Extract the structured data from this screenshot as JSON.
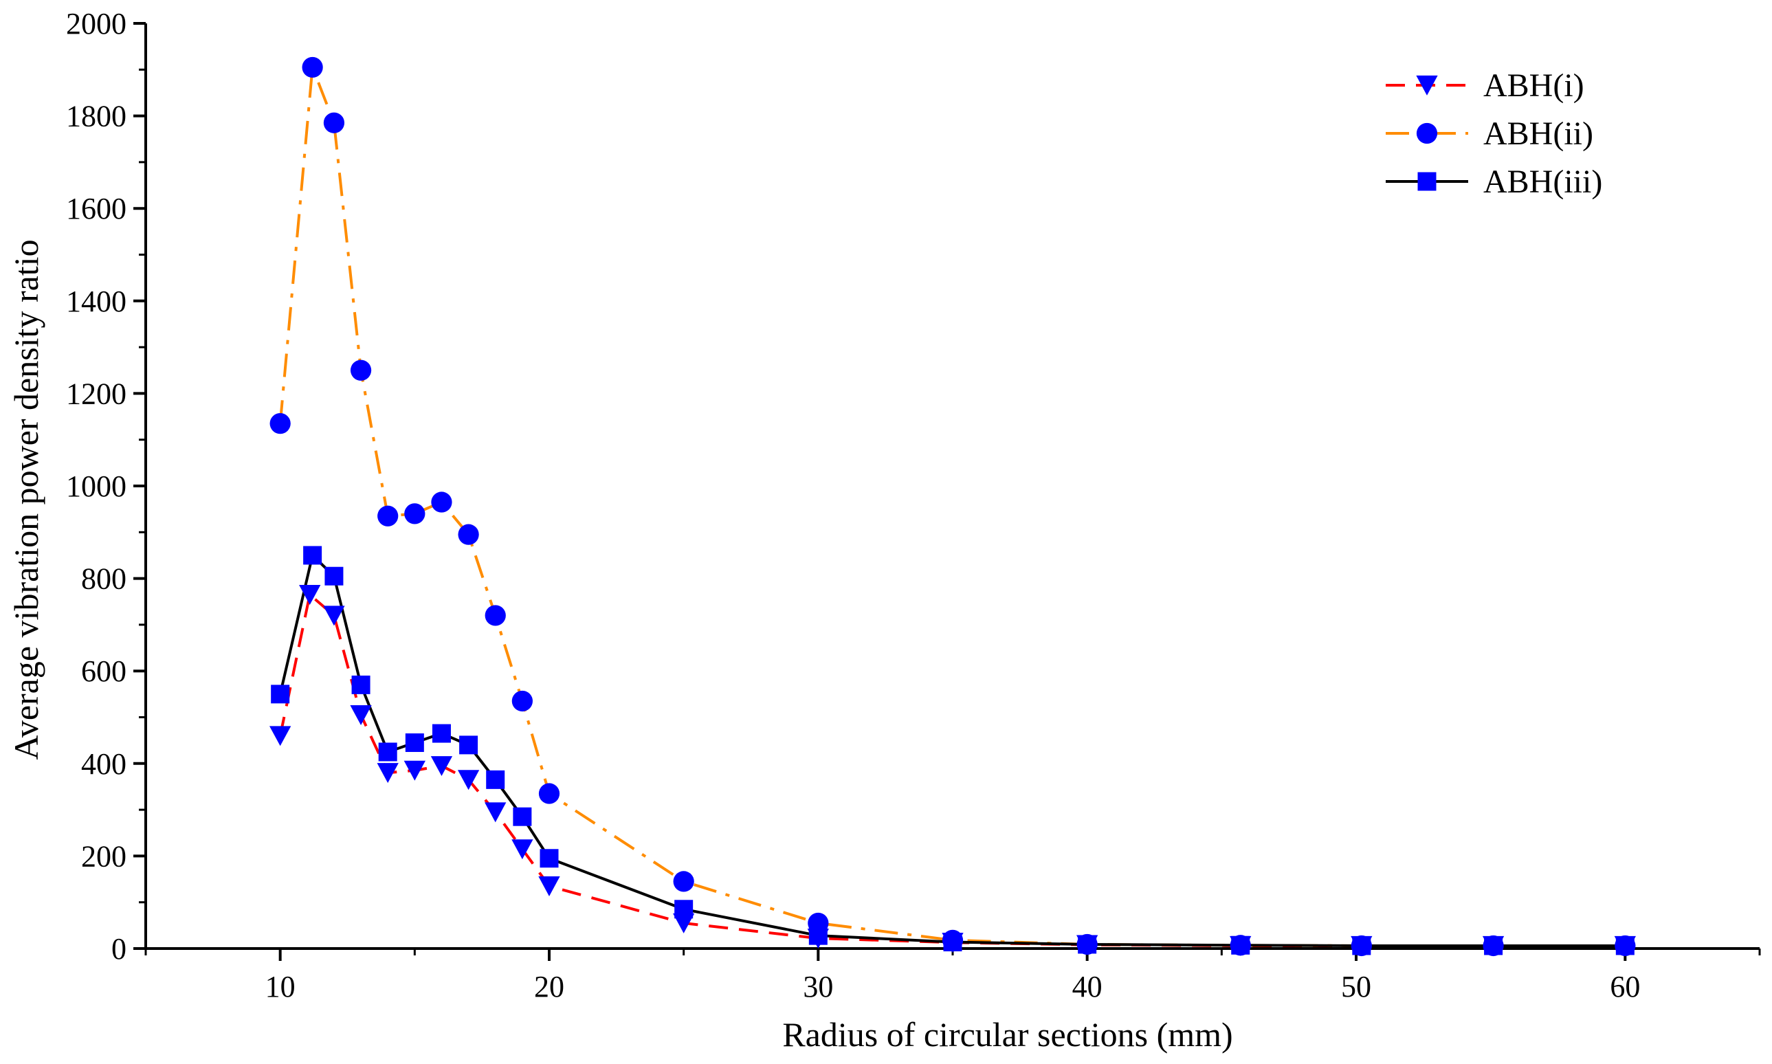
{
  "chart_data": {
    "type": "line",
    "title": "",
    "xlabel": "Radius of circular sections (mm)",
    "ylabel": "Average vibration power density ratio",
    "xlim": [
      5,
      65
    ],
    "ylim": [
      0,
      2000
    ],
    "xticks": [
      10,
      20,
      30,
      40,
      50,
      60
    ],
    "yticks": [
      0,
      200,
      400,
      600,
      800,
      1000,
      1200,
      1400,
      1600,
      1800,
      2000
    ],
    "grid": false,
    "legend_position": "top-right",
    "series": [
      {
        "name": "ABH(i)",
        "color": "#ff0000",
        "line_style": "dashed",
        "marker": "triangle-down",
        "marker_color": "#0000ff",
        "x": [
          10,
          11.1,
          12,
          13,
          14,
          15,
          16,
          17,
          18,
          19,
          20,
          25,
          30,
          35,
          40,
          45.7,
          50.2,
          55.1,
          60
        ],
        "y": [
          460,
          765,
          720,
          505,
          380,
          385,
          395,
          365,
          295,
          215,
          135,
          55,
          22,
          13,
          8,
          6,
          6,
          6,
          6
        ]
      },
      {
        "name": "ABH(ii)",
        "color": "#ff8c00",
        "line_style": "dashdot",
        "marker": "circle",
        "marker_color": "#0000ff",
        "x": [
          10,
          11.2,
          12,
          13,
          14,
          15,
          16,
          17,
          18,
          19,
          20,
          25,
          30,
          35,
          40,
          45.7,
          50.2,
          55.1,
          60
        ],
        "y": [
          1135,
          1905,
          1785,
          1250,
          935,
          940,
          965,
          895,
          720,
          535,
          335,
          145,
          55,
          18,
          9,
          7,
          6,
          6,
          6
        ]
      },
      {
        "name": "ABH(iii)",
        "color": "#000000",
        "line_style": "solid",
        "marker": "square",
        "marker_color": "#0000ff",
        "x": [
          10,
          11.2,
          12,
          13,
          14,
          15,
          16,
          17,
          18,
          19,
          20,
          25,
          30,
          35,
          40,
          45.7,
          50.2,
          55.1,
          60
        ],
        "y": [
          550,
          850,
          805,
          570,
          425,
          445,
          465,
          440,
          365,
          285,
          195,
          85,
          28,
          14,
          9,
          7,
          6,
          6,
          6
        ]
      }
    ]
  }
}
